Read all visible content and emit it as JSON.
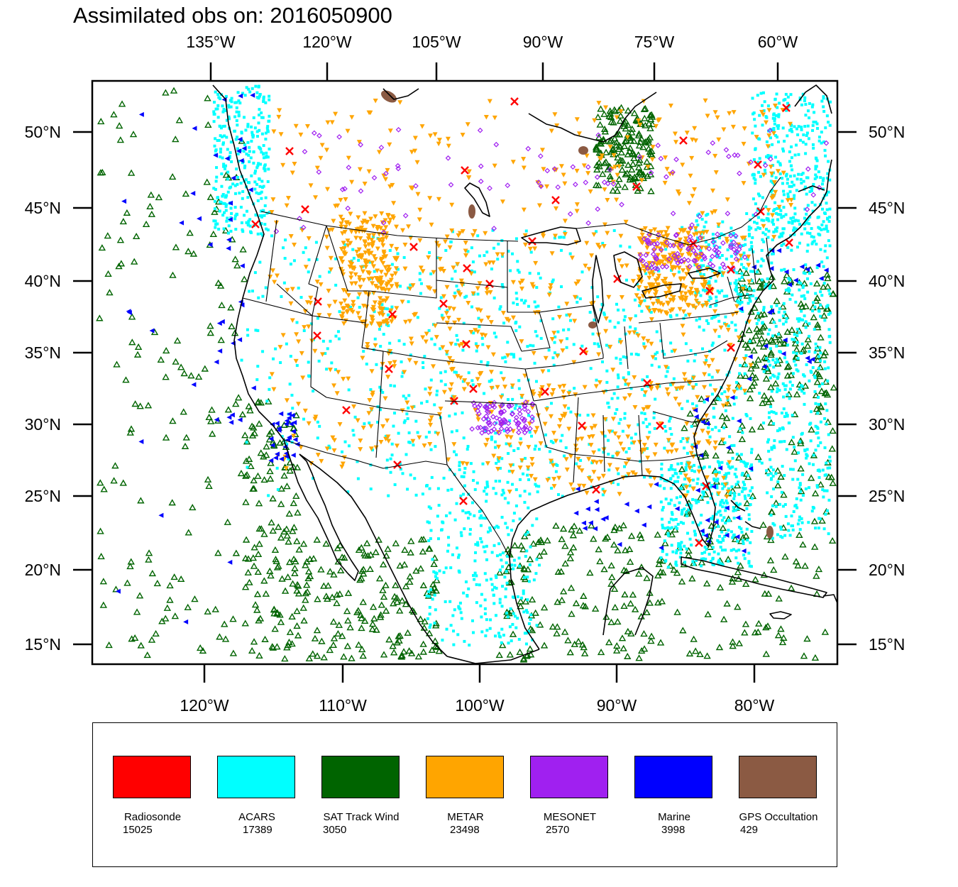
{
  "title": "Assimilated obs on: 2016050900",
  "map": {
    "top_lon_labels": [
      "135°W",
      "120°W",
      "105°W",
      "90°W",
      "75°W",
      "60°W"
    ],
    "bottom_lon_labels": [
      "120°W",
      "110°W",
      "100°W",
      "90°W",
      "80°W"
    ],
    "lat_labels": [
      "50°N",
      "45°N",
      "40°N",
      "35°N",
      "30°N",
      "25°N",
      "20°N",
      "15°N"
    ],
    "region": "Continental United States with surrounding oceans, Canada, Mexico and the Caribbean"
  },
  "legend": [
    {
      "name": "Radiosonde",
      "count": "15025",
      "color": "#ff0000",
      "marker": "x-cross"
    },
    {
      "name": "ACARS",
      "count": "17389",
      "color": "#00ffff",
      "marker": "square-dot"
    },
    {
      "name": "SAT Track Wind",
      "count": "3050",
      "color": "#006400",
      "marker": "open-triangle"
    },
    {
      "name": "METAR",
      "count": "23498",
      "color": "#ffa500",
      "marker": "down-triangle"
    },
    {
      "name": "MESONET",
      "count": "2570",
      "color": "#a020f0",
      "marker": "open-diamond"
    },
    {
      "name": "Marine",
      "count": "3998",
      "color": "#0000ff",
      "marker": "left-triangle"
    },
    {
      "name": "GPS Occultation",
      "count": "429",
      "color": "#8b5a43",
      "marker": "blob"
    }
  ]
}
